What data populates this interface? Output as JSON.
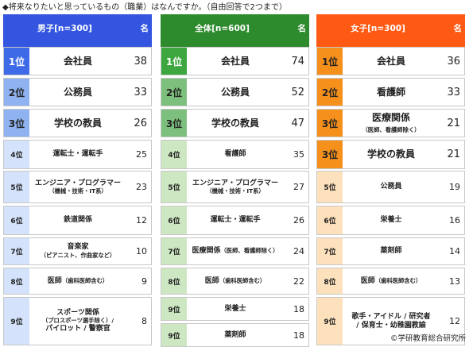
{
  "caption": "◆将来なりたいと思っているもの（職業）はなんですか。（自由回答で2つまで）",
  "footer": "©学研教育総合研究所",
  "colors": {
    "male": {
      "header": "#3355e0",
      "header_text": "#ffffff",
      "strong": "#3e6ae8",
      "mid": "#8fb3f0",
      "light": "#d4e3fb",
      "strong_text": "#ffffff",
      "light_text": "#222222"
    },
    "total": {
      "header": "#2d8a2d",
      "header_text": "#ffffff",
      "strong": "#3ea63e",
      "mid": "#7dc07d",
      "light": "#cde7c2",
      "strong_text": "#ffffff",
      "light_text": "#222222"
    },
    "female": {
      "header": "#ff5a14",
      "header_text": "#ffffff",
      "strong": "#f5901c",
      "mid": "#f9b86e",
      "light": "#fde1bd",
      "strong_text": "#222222",
      "light_text": "#222222"
    }
  },
  "panels": [
    {
      "key": "male",
      "header": "男子[n=300]",
      "unit": "名",
      "rows": [
        {
          "rank": "1位",
          "name": "会社員",
          "count": "38"
        },
        {
          "rank": "2位",
          "name": "公務員",
          "count": "33"
        },
        {
          "rank": "3位",
          "name": "学校の教員",
          "count": "26"
        },
        {
          "rank": "4位",
          "name": "運転士・運転手",
          "count": "25"
        },
        {
          "rank": "5位",
          "name": "エンジニア・プログラマー",
          "sub": "（機械・技術・IT系）",
          "count": "23"
        },
        {
          "rank": "6位",
          "name": "鉄道関係",
          "count": "12"
        },
        {
          "rank": "7位",
          "name": "音楽家",
          "sub": "（ピアニスト、作曲家など）",
          "count": "10"
        },
        {
          "rank": "8位",
          "name": "医師",
          "sub": "（歯科医師含む）",
          "count": "9"
        },
        {
          "rank": "9位",
          "name": "スポーツ関係",
          "sub": "（プロスポーツ選手除く）/",
          "name2": "パイロット / 警察官",
          "count": "8"
        }
      ]
    },
    {
      "key": "total",
      "header": "全体[n=600]",
      "unit": "名",
      "rows": [
        {
          "rank": "1位",
          "name": "会社員",
          "count": "74"
        },
        {
          "rank": "2位",
          "name": "公務員",
          "count": "52"
        },
        {
          "rank": "3位",
          "name": "学校の教員",
          "count": "47"
        },
        {
          "rank": "4位",
          "name": "看護師",
          "count": "35"
        },
        {
          "rank": "5位",
          "name": "エンジニア・プログラマー",
          "sub": "（機械・技術・IT系）",
          "count": "27"
        },
        {
          "rank": "6位",
          "name": "運転士・運転手",
          "count": "26"
        },
        {
          "rank": "7位",
          "name": "医療関係",
          "sub": "（医師、看護師除く）",
          "count": "24"
        },
        {
          "rank": "8位",
          "name": "医師",
          "sub": "（歯科医師含む）",
          "count": "22"
        },
        {
          "rank": "9位",
          "name": "栄養士",
          "count": "18"
        },
        {
          "rank": "9位",
          "name": "薬剤師",
          "count": "18"
        }
      ]
    },
    {
      "key": "female",
      "header": "女子[n=300]",
      "unit": "名",
      "rows": [
        {
          "rank": "1位",
          "name": "会社員",
          "count": "36"
        },
        {
          "rank": "2位",
          "name": "看護師",
          "count": "33"
        },
        {
          "rank": "3位",
          "name": "医療関係",
          "sub": "（医師、看護師除く）",
          "count": "21"
        },
        {
          "rank": "3位",
          "name": "学校の教員",
          "count": "21"
        },
        {
          "rank": "5位",
          "name": "公務員",
          "count": "19"
        },
        {
          "rank": "6位",
          "name": "栄養士",
          "count": "16"
        },
        {
          "rank": "7位",
          "name": "薬剤師",
          "count": "14"
        },
        {
          "rank": "8位",
          "name": "医師",
          "sub": "（歯科医師含む）",
          "count": "13"
        },
        {
          "rank": "9位",
          "name": "歌手・アイドル / 研究者",
          "name2": "/ 保育士・幼稚園教諭",
          "count": "12"
        }
      ]
    }
  ]
}
